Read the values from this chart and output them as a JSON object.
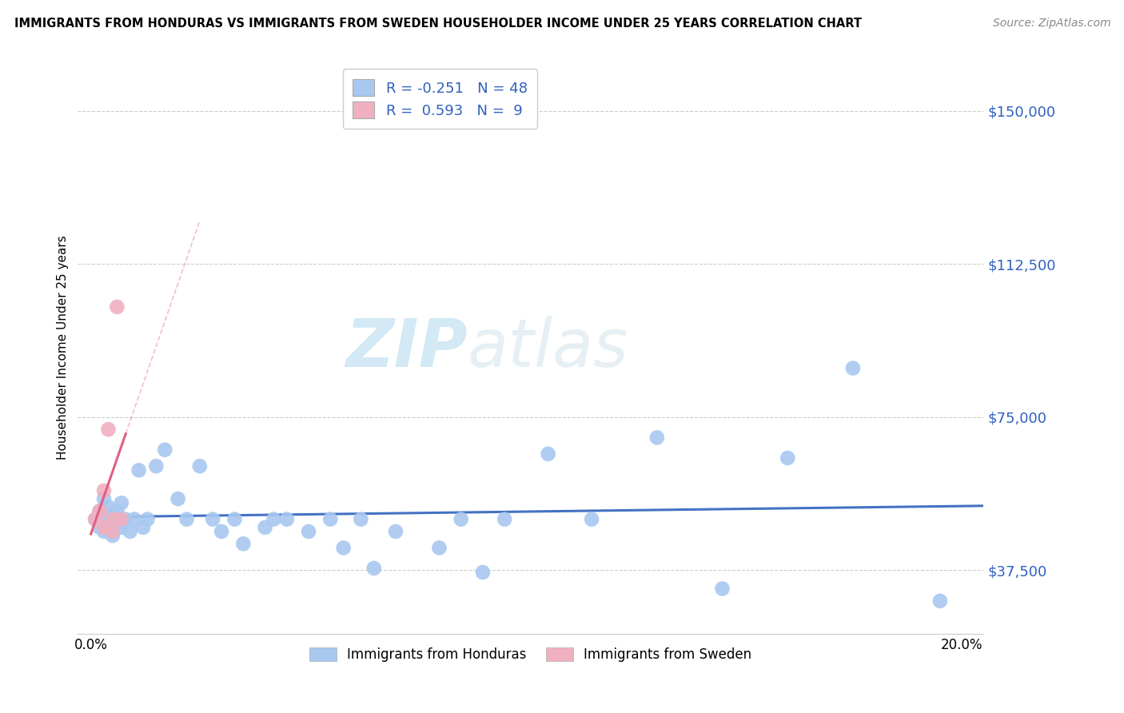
{
  "title": "IMMIGRANTS FROM HONDURAS VS IMMIGRANTS FROM SWEDEN HOUSEHOLDER INCOME UNDER 25 YEARS CORRELATION CHART",
  "source": "Source: ZipAtlas.com",
  "ylabel": "Householder Income Under 25 years",
  "ytick_vals": [
    37500,
    75000,
    112500,
    150000
  ],
  "ytick_labels": [
    "$37,500",
    "$75,000",
    "$112,500",
    "$150,000"
  ],
  "xlim": [
    -0.003,
    0.205
  ],
  "ylim": [
    22000,
    162000
  ],
  "legend_r_honduras": "-0.251",
  "legend_n_honduras": "48",
  "legend_r_sweden": "0.593",
  "legend_n_sweden": "9",
  "honduras_color": "#a8c8f0",
  "sweden_color": "#f0b0c0",
  "trendline_honduras_color": "#4472c4",
  "trendline_sweden_color": "#e06080",
  "watermark_color": "#cce8f4",
  "honduras_x": [
    0.001,
    0.002,
    0.002,
    0.003,
    0.003,
    0.004,
    0.004,
    0.005,
    0.005,
    0.006,
    0.006,
    0.007,
    0.007,
    0.008,
    0.009,
    0.01,
    0.011,
    0.012,
    0.013,
    0.015,
    0.017,
    0.02,
    0.022,
    0.025,
    0.028,
    0.03,
    0.033,
    0.035,
    0.04,
    0.042,
    0.045,
    0.05,
    0.055,
    0.058,
    0.062,
    0.065,
    0.07,
    0.08,
    0.085,
    0.09,
    0.095,
    0.105,
    0.115,
    0.13,
    0.145,
    0.16,
    0.175,
    0.195
  ],
  "honduras_y": [
    50000,
    52000,
    48000,
    55000,
    47000,
    50000,
    53000,
    46000,
    51000,
    49000,
    52000,
    48000,
    54000,
    50000,
    47000,
    50000,
    62000,
    48000,
    50000,
    63000,
    67000,
    55000,
    50000,
    63000,
    50000,
    47000,
    50000,
    44000,
    48000,
    50000,
    50000,
    47000,
    50000,
    43000,
    50000,
    38000,
    47000,
    43000,
    50000,
    37000,
    50000,
    66000,
    50000,
    70000,
    33000,
    65000,
    87000,
    30000
  ],
  "sweden_x": [
    0.001,
    0.002,
    0.003,
    0.003,
    0.004,
    0.005,
    0.005,
    0.006,
    0.007
  ],
  "sweden_y": [
    50000,
    52000,
    57000,
    48000,
    72000,
    50000,
    47000,
    102000,
    50000
  ],
  "trendline_hon_x0": 0.0,
  "trendline_hon_x1": 0.205,
  "trendline_swe_x0": 0.0,
  "trendline_swe_x1": 0.008
}
